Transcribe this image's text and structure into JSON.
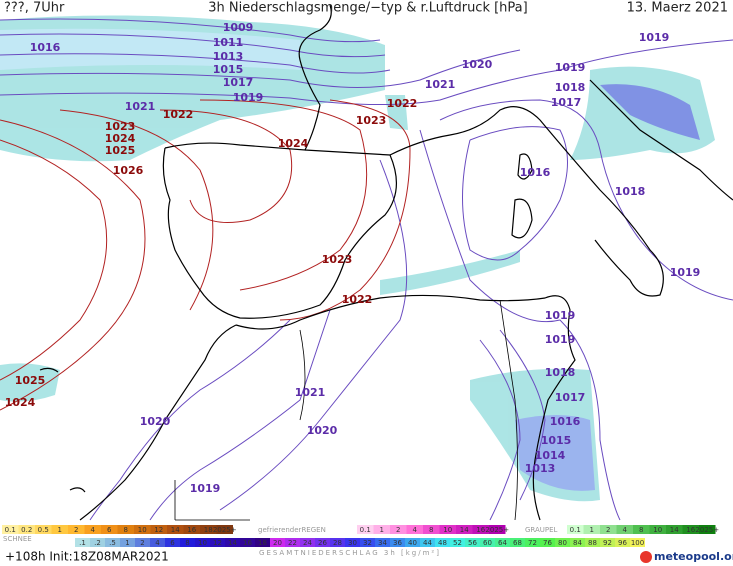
{
  "header": {
    "left": "???, 7Uhr",
    "title": "3h Niederschlagsmenge/−typ & r.Luftdruck [hPa]",
    "date": "13. Maerz 2021"
  },
  "isobar_labels": [
    {
      "text": "1009",
      "color": "#5b2ca8"
    },
    {
      "text": "1011",
      "color": "#5b2ca8"
    },
    {
      "text": "1013",
      "color": "#5b2ca8"
    },
    {
      "text": "1015",
      "color": "#5b2ca8"
    },
    {
      "text": "1017",
      "color": "#5b2ca8"
    },
    {
      "text": "1019",
      "color": "#5b2ca8"
    },
    {
      "text": "1016",
      "color": "#5b2ca8"
    },
    {
      "text": "1021",
      "color": "#5b2ca8"
    },
    {
      "text": "1021",
      "color": "#5b2ca8"
    },
    {
      "text": "1020",
      "color": "#5b2ca8"
    },
    {
      "text": "1019",
      "color": "#5b2ca8"
    },
    {
      "text": "1019",
      "color": "#5b2ca8"
    },
    {
      "text": "1018",
      "color": "#5b2ca8"
    },
    {
      "text": "1017",
      "color": "#5b2ca8"
    },
    {
      "text": "1016",
      "color": "#5b2ca8"
    },
    {
      "text": "1018",
      "color": "#5b2ca8"
    },
    {
      "text": "1019",
      "color": "#5b2ca8"
    },
    {
      "text": "1019",
      "color": "#5b2ca8"
    },
    {
      "text": "1019",
      "color": "#5b2ca8"
    },
    {
      "text": "1018",
      "color": "#5b2ca8"
    },
    {
      "text": "1017",
      "color": "#5b2ca8"
    },
    {
      "text": "1016",
      "color": "#5b2ca8"
    },
    {
      "text": "1015",
      "color": "#5b2ca8"
    },
    {
      "text": "1014",
      "color": "#5b2ca8"
    },
    {
      "text": "1013",
      "color": "#5b2ca8"
    },
    {
      "text": "1021",
      "color": "#5b2ca8"
    },
    {
      "text": "1020",
      "color": "#5b2ca8"
    },
    {
      "text": "1020",
      "color": "#5b2ca8"
    },
    {
      "text": "1019",
      "color": "#5b2ca8"
    },
    {
      "text": "1022",
      "color": "#8b0a0a"
    },
    {
      "text": "1023",
      "color": "#8b0a0a"
    },
    {
      "text": "1024",
      "color": "#8b0a0a"
    },
    {
      "text": "1025",
      "color": "#8b0a0a"
    },
    {
      "text": "1026",
      "color": "#8b0a0a"
    },
    {
      "text": "1022",
      "color": "#8b0a0a"
    },
    {
      "text": "1023",
      "color": "#8b0a0a"
    },
    {
      "text": "1024",
      "color": "#8b0a0a"
    },
    {
      "text": "1023",
      "color": "#8b0a0a"
    },
    {
      "text": "1022",
      "color": "#8b0a0a"
    },
    {
      "text": "1025",
      "color": "#8b0a0a"
    },
    {
      "text": "1024",
      "color": "#8b0a0a"
    }
  ],
  "legend": {
    "snow": {
      "name": "SCHNEE",
      "labels": [
        "0.1",
        "0.2",
        "0.5",
        "1",
        "2",
        "4",
        "6",
        "8",
        "10",
        "12",
        "14",
        "16",
        "18",
        "2025+"
      ],
      "colors": [
        "#fff0a0",
        "#ffe680",
        "#ffd860",
        "#ffc840",
        "#ffb830",
        "#f8a020",
        "#f09018",
        "#e08010",
        "#d07010",
        "#c06010",
        "#b05010",
        "#a04810",
        "#904010",
        "#803810"
      ]
    },
    "freezing_rain": {
      "name": "gefrierenderREGEN",
      "labels": [
        "0.1",
        "1",
        "2",
        "4",
        "8",
        "10",
        "14",
        "16",
        "2025+"
      ],
      "colors": [
        "#ffd0f0",
        "#ffb0e8",
        "#ff90e0",
        "#ff70d8",
        "#f050d0",
        "#e030c8",
        "#d020c0",
        "#c010b8",
        "#b000b0"
      ]
    },
    "graupel": {
      "name": "GRAUPEL",
      "labels": [
        "0.1",
        "1",
        "2",
        "4",
        "8",
        "10",
        "14",
        "16",
        "2025+"
      ],
      "colors": [
        "#d0ffd0",
        "#b0f0b0",
        "#90e090",
        "#70d070",
        "#50c050",
        "#40b040",
        "#30a030",
        "#209020",
        "#108010"
      ]
    },
    "total": {
      "name": "GESAMTNIEDERSCHLAG 3h [kg/m²]",
      "labels": [
        ".1",
        ".2",
        ".5",
        "1",
        "2",
        "4",
        "6",
        "8",
        "10",
        "12",
        "14",
        "16",
        "18",
        "20",
        "22",
        "24",
        "26",
        "28",
        "30",
        "32",
        "34",
        "36",
        "40",
        "44",
        "48",
        "52",
        "56",
        "60",
        "64",
        "68",
        "72",
        "76",
        "80",
        "84",
        "88",
        "92",
        "96",
        "100"
      ]
    }
  },
  "footer": {
    "run": "+108h Init:18Z08MAR2021",
    "brand": "meteopool.org"
  }
}
